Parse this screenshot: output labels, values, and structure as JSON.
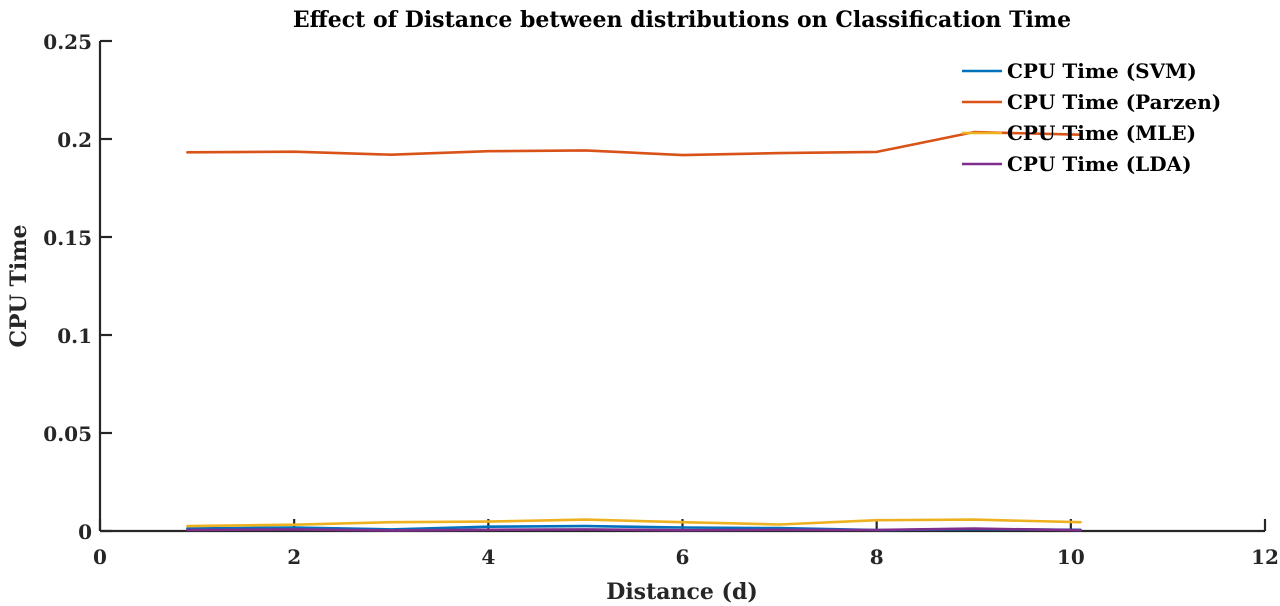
{
  "chart_data": {
    "type": "line",
    "title": "Effect of Distance between distributions on Classification Time",
    "xlabel": "Distance (d)",
    "ylabel": "CPU Time",
    "xlim": [
      0,
      12
    ],
    "ylim": [
      0,
      0.25
    ],
    "xticks": [
      0,
      2,
      4,
      6,
      8,
      10,
      12
    ],
    "xtick_labels": [
      "0",
      "2",
      "4",
      "6",
      "8",
      "10",
      "12"
    ],
    "yticks": [
      0,
      0.05,
      0.1,
      0.15,
      0.2,
      0.25
    ],
    "ytick_labels": [
      "0",
      "0.05",
      "0.1",
      "0.15",
      "0.2",
      "0.25"
    ],
    "grid": false,
    "legend_position": "top-right",
    "x": [
      0.9,
      2,
      3,
      4,
      5,
      6,
      7,
      8,
      9,
      10.1
    ],
    "series": [
      {
        "name": "CPU Time (SVM)",
        "color": "#0072BD",
        "values": [
          0.0012,
          0.0018,
          0.0008,
          0.0022,
          0.0025,
          0.0018,
          0.0015,
          0.0005,
          0.0009,
          0.0006
        ]
      },
      {
        "name": "CPU Time (Parzen)",
        "color": "#D95319",
        "values": [
          0.1932,
          0.1935,
          0.192,
          0.1938,
          0.1942,
          0.1918,
          0.1928,
          0.1934,
          0.2035,
          0.2022
        ]
      },
      {
        "name": "CPU Time (MLE)",
        "color": "#EDB120",
        "values": [
          0.0025,
          0.0032,
          0.0045,
          0.0048,
          0.0058,
          0.0045,
          0.0033,
          0.0055,
          0.0058,
          0.0045
        ]
      },
      {
        "name": "CPU Time (LDA)",
        "color": "#7E2F8E",
        "values": [
          0.0005,
          0.0008,
          0.0003,
          0.0006,
          0.0008,
          0.0004,
          0.0006,
          0.0005,
          0.0012,
          0.0004
        ]
      }
    ]
  }
}
